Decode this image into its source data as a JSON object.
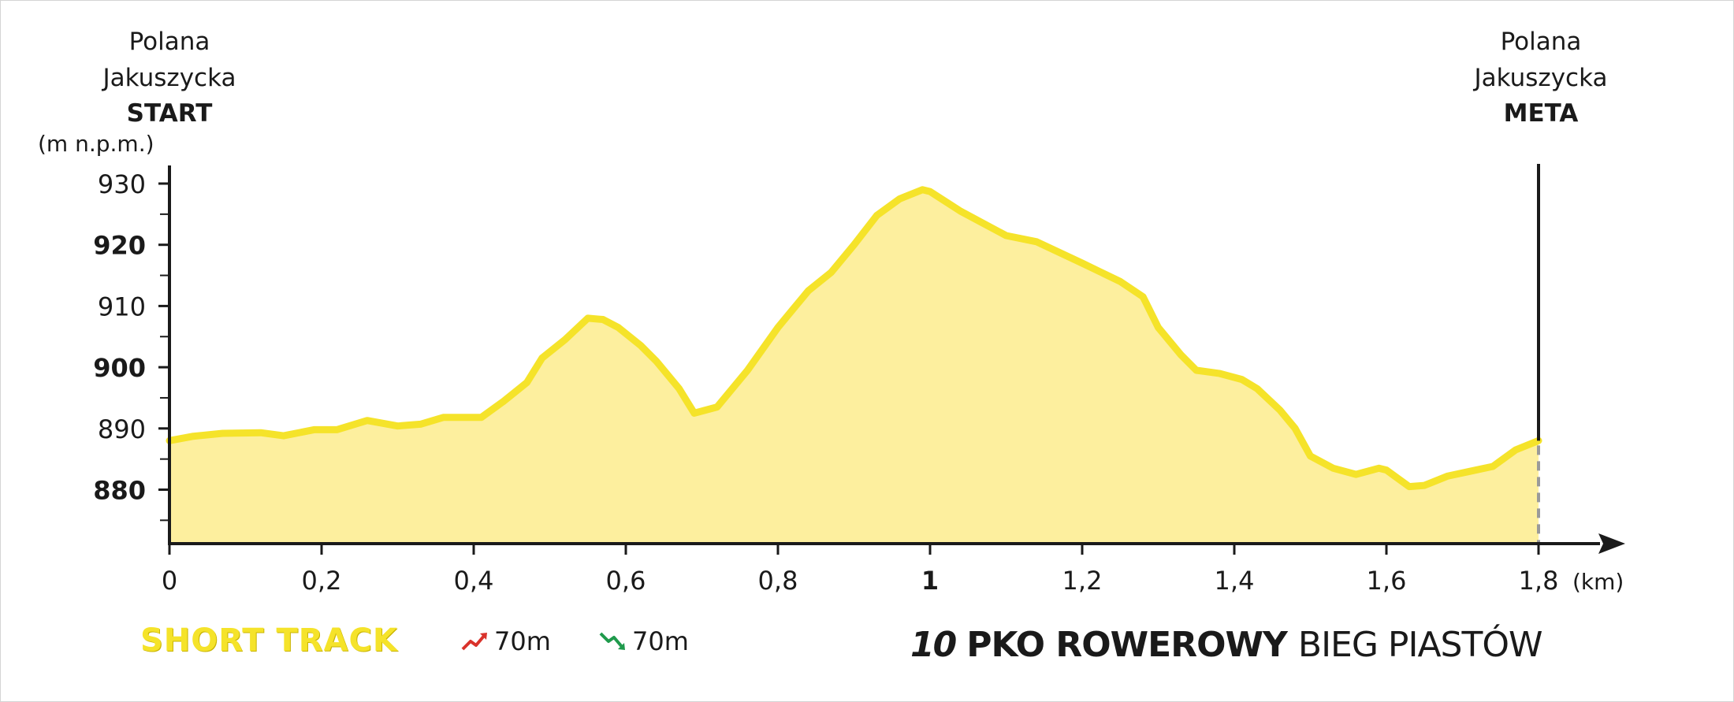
{
  "start_label": {
    "line1": "Polana",
    "line2": "Jakuszycka",
    "line3": "START"
  },
  "end_label": {
    "line1": "Polana",
    "line2": "Jakuszycka",
    "line3": "META"
  },
  "footer": {
    "track_name": "SHORT TRACK",
    "ascent": "70m",
    "descent": "70m",
    "ascent_icon": "trend-up-icon",
    "descent_icon": "trend-down-icon",
    "ascent_color": "#d9322b",
    "descent_color": "#1f9a4c",
    "brand_number": "10",
    "brand_bold": "PKO ROWEROWY",
    "brand_light": "BIEG PIASTÓW"
  },
  "colors": {
    "line": "#f5e32a",
    "fill": "#fdef9e",
    "axis": "#1a1a1a"
  },
  "chart_data": {
    "type": "area",
    "ylabel": "(m n.p.m.)",
    "xunit": "(km)",
    "ylim": [
      871,
      933
    ],
    "xlim": [
      0,
      1.92
    ],
    "x_ticks": [
      {
        "value": 0,
        "label": "0",
        "bold": false
      },
      {
        "value": 0.2,
        "label": "0,2",
        "bold": false
      },
      {
        "value": 0.4,
        "label": "0,4",
        "bold": false
      },
      {
        "value": 0.6,
        "label": "0,6",
        "bold": false
      },
      {
        "value": 0.8,
        "label": "0,8",
        "bold": false
      },
      {
        "value": 1,
        "label": "1",
        "bold": true
      },
      {
        "value": 1.2,
        "label": "1,2",
        "bold": false
      },
      {
        "value": 1.4,
        "label": "1,4",
        "bold": false
      },
      {
        "value": 1.6,
        "label": "1,6",
        "bold": false
      },
      {
        "value": 1.8,
        "label": "1,8",
        "bold": false
      }
    ],
    "y_ticks": [
      {
        "value": 930,
        "label": "930",
        "bold": false
      },
      {
        "value": 920,
        "label": "920",
        "bold": true
      },
      {
        "value": 910,
        "label": "910",
        "bold": false
      },
      {
        "value": 900,
        "label": "900",
        "bold": true
      },
      {
        "value": 890,
        "label": "890",
        "bold": false
      },
      {
        "value": 880,
        "label": "880",
        "bold": true
      }
    ],
    "y_minor_ticks": [
      925,
      915,
      905,
      895,
      885,
      875
    ],
    "finish_x": 1.8,
    "series": [
      {
        "x": [
          0,
          0.03,
          0.07,
          0.12,
          0.15,
          0.19,
          0.22,
          0.26,
          0.3,
          0.33,
          0.36,
          0.41,
          0.44,
          0.47,
          0.49,
          0.52,
          0.55,
          0.57,
          0.59,
          0.62,
          0.64,
          0.67,
          0.69,
          0.72,
          0.76,
          0.8,
          0.82,
          0.84,
          0.87,
          0.9,
          0.93,
          0.96,
          0.99,
          1.0,
          1.04,
          1.1,
          1.14,
          1.2,
          1.25,
          1.28,
          1.3,
          1.33,
          1.35,
          1.38,
          1.41,
          1.43,
          1.46,
          1.48,
          1.5,
          1.53,
          1.56,
          1.59,
          1.6,
          1.63,
          1.65,
          1.68,
          1.71,
          1.74,
          1.77,
          1.8
        ],
        "y": [
          888,
          888.7,
          889.2,
          889.3,
          888.8,
          889.8,
          889.8,
          891.3,
          890.4,
          890.7,
          891.8,
          891.8,
          894.5,
          897.5,
          901.5,
          904.5,
          908,
          907.8,
          906.5,
          903.5,
          901,
          896.5,
          892.5,
          893.5,
          899.5,
          906.5,
          909.5,
          912.5,
          915.5,
          920,
          924.8,
          927.5,
          929,
          928.7,
          925.5,
          921.5,
          920.5,
          917,
          914,
          911.5,
          906.5,
          902,
          899.5,
          899,
          898,
          896.5,
          893,
          890,
          885.5,
          883.5,
          882.5,
          883.5,
          883.2,
          880.5,
          880.7,
          882.2,
          883,
          883.8,
          886.5,
          888
        ]
      }
    ]
  }
}
